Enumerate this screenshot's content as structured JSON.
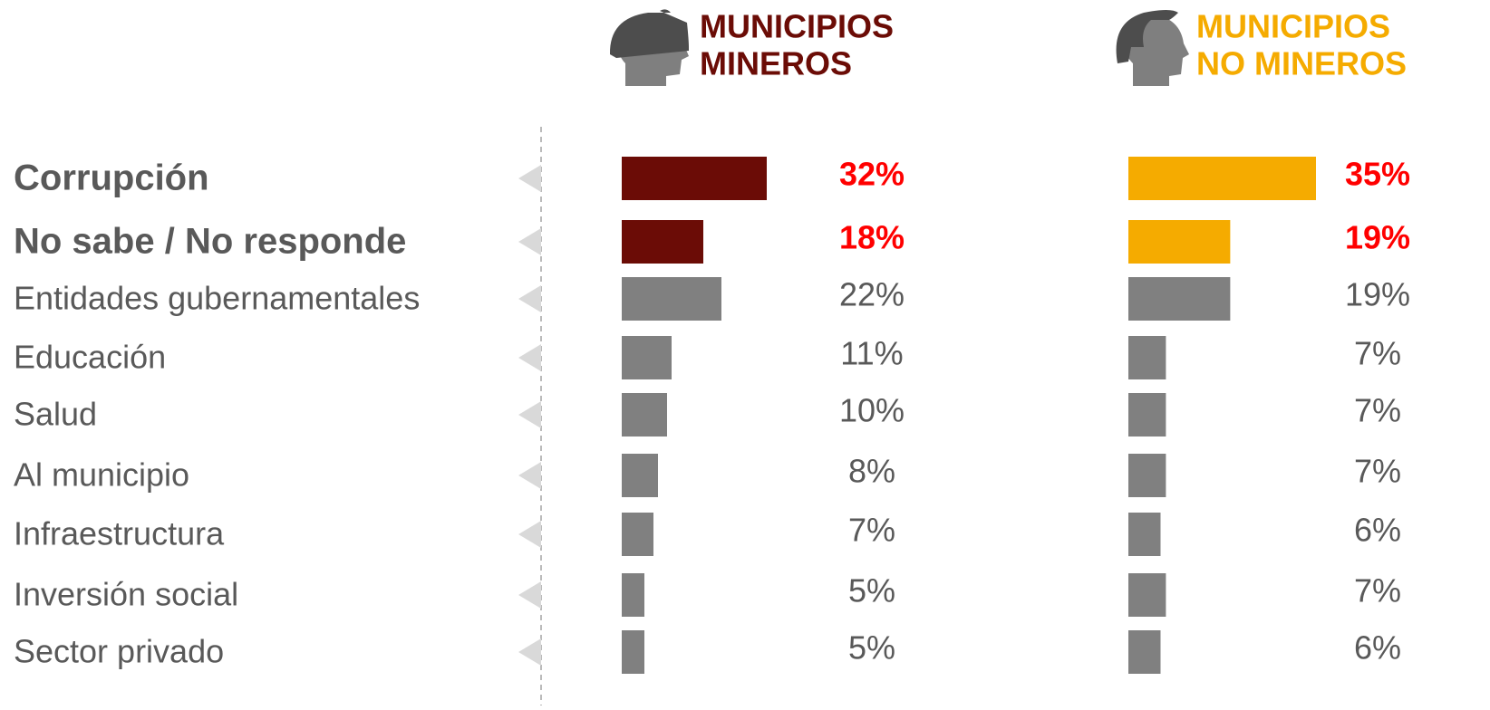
{
  "categories": [
    "Corrupción",
    "No sabe / No responde",
    "Entidades gubernamentales",
    "Educación",
    "Salud",
    "Al municipio",
    "Infraestructura",
    "Inversión social",
    "Sector privado"
  ],
  "emphasized": 2,
  "chart_data": [
    {
      "type": "bar",
      "title": [
        "MUNICIPIOS",
        "MINEROS"
      ],
      "title_color": "#6b0c06",
      "values": [
        32,
        18,
        22,
        11,
        10,
        8,
        7,
        5,
        5
      ],
      "value_labels": [
        "32%",
        "18%",
        "22%",
        "11%",
        "10%",
        "8%",
        "7%",
        "5%",
        "5%"
      ],
      "colors": [
        "#6b0c06",
        "#6b0c06",
        "#808080",
        "#808080",
        "#808080",
        "#808080",
        "#808080",
        "#808080",
        "#808080"
      ],
      "xlim": [
        0,
        35
      ]
    },
    {
      "type": "bar",
      "title": [
        "MUNICIPIOS",
        "NO MINEROS"
      ],
      "title_color": "#f5ab00",
      "values": [
        35,
        19,
        19,
        7,
        7,
        7,
        6,
        7,
        6
      ],
      "value_labels": [
        "35%",
        "19%",
        "19%",
        "7%",
        "7%",
        "7%",
        "6%",
        "7%",
        "6%"
      ],
      "colors": [
        "#f5ab00",
        "#f5ab00",
        "#808080",
        "#808080",
        "#808080",
        "#808080",
        "#808080",
        "#808080",
        "#808080"
      ],
      "xlim": [
        0,
        35
      ]
    }
  ]
}
